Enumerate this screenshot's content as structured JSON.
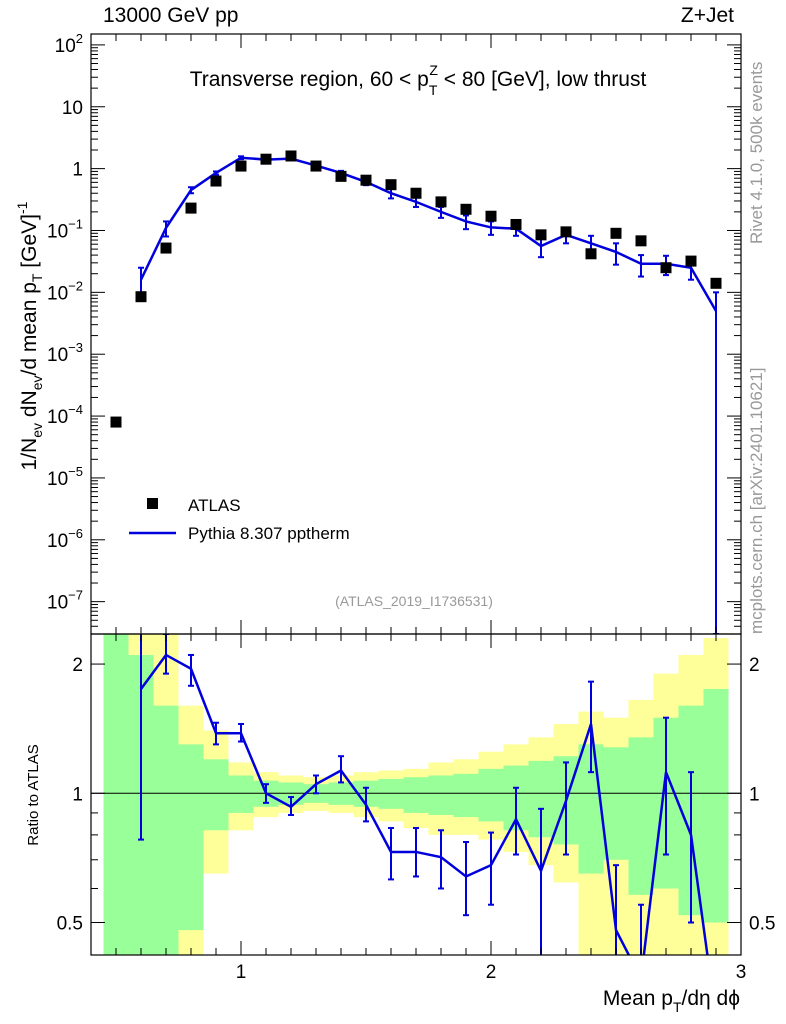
{
  "header": {
    "left_label": "13000 GeV pp",
    "right_label": "Z+Jet"
  },
  "side": {
    "rivet": "Rivet 4.1.0,  500k events",
    "mcplots": "mcplots.cern.ch [arXiv:2401.10621]"
  },
  "colors": {
    "mc": "#0000dd",
    "band_outer": "#ffff99",
    "band_inner": "#99ff99",
    "data": "#000000",
    "analysis": "#999999"
  },
  "chart_data": [
    {
      "type": "scatter",
      "role": "main",
      "title": "Transverse region, 60 < p_T^Z < 80 [GeV], low thrust",
      "ylabel": "1/N_ev dN_ev/d mean p_T [GeV]^-1",
      "yscale": "log",
      "ylim": [
        3e-08,
        150
      ],
      "xlim": [
        0.4,
        3.0
      ],
      "analysis_label": "(ATLAS_2019_I1736531)",
      "legend": {
        "position": "lower-left",
        "entries": [
          "ATLAS",
          "Pythia 8.307 pptherm"
        ]
      },
      "series": [
        {
          "name": "ATLAS",
          "style": "markers",
          "x": [
            0.5,
            0.6,
            0.7,
            0.8,
            0.9,
            1.0,
            1.1,
            1.2,
            1.3,
            1.4,
            1.5,
            1.6,
            1.7,
            1.8,
            1.9,
            2.0,
            2.1,
            2.2,
            2.3,
            2.4,
            2.5,
            2.6,
            2.7,
            2.8,
            2.9
          ],
          "y": [
            8e-05,
            0.0085,
            0.052,
            0.23,
            0.63,
            1.1,
            1.42,
            1.6,
            1.1,
            0.75,
            0.65,
            0.55,
            0.4,
            0.29,
            0.22,
            0.17,
            0.125,
            0.085,
            0.095,
            0.042,
            0.09,
            0.068,
            0.025,
            0.032,
            0.014
          ]
        },
        {
          "name": "Pythia 8.307 pptherm",
          "style": "line",
          "x": [
            0.6,
            0.7,
            0.8,
            0.9,
            1.0,
            1.1,
            1.2,
            1.3,
            1.4,
            1.5,
            1.6,
            1.7,
            1.8,
            1.9,
            2.0,
            2.1,
            2.2,
            2.3,
            2.4,
            2.5,
            2.6,
            2.7,
            2.8,
            2.9
          ],
          "y": [
            0.016,
            0.11,
            0.45,
            0.85,
            1.5,
            1.4,
            1.45,
            1.12,
            0.85,
            0.61,
            0.4,
            0.29,
            0.2,
            0.14,
            0.112,
            0.107,
            0.056,
            0.085,
            0.062,
            0.045,
            0.029,
            0.029,
            0.025,
            0.005
          ],
          "yerr_low": [
            0.009,
            0.08,
            0.4,
            0.8,
            1.42,
            1.32,
            1.38,
            1.05,
            0.78,
            0.54,
            0.33,
            0.24,
            0.16,
            0.105,
            0.085,
            0.082,
            0.037,
            0.062,
            0.042,
            0.028,
            0.018,
            0.019,
            0.016,
            3e-08
          ],
          "yerr_high": [
            0.025,
            0.14,
            0.5,
            0.9,
            1.58,
            1.48,
            1.52,
            1.19,
            0.92,
            0.68,
            0.47,
            0.34,
            0.24,
            0.175,
            0.14,
            0.132,
            0.075,
            0.108,
            0.082,
            0.062,
            0.04,
            0.039,
            0.034,
            0.01
          ]
        }
      ]
    },
    {
      "type": "line",
      "role": "ratio",
      "ylabel": "Ratio to ATLAS",
      "xlabel": "Mean p_T/dη dϕ",
      "yscale": "log",
      "ylim": [
        0.42,
        2.35
      ],
      "xlim": [
        0.4,
        3.0
      ],
      "x_ticks": [
        "1",
        "2",
        "3"
      ],
      "y_ticks": [
        "0.5",
        "1",
        "2"
      ],
      "bands": {
        "edges": [
          0.45,
          0.55,
          0.65,
          0.75,
          0.85,
          0.95,
          1.05,
          1.15,
          1.25,
          1.35,
          1.45,
          1.55,
          1.65,
          1.75,
          1.85,
          1.95,
          2.05,
          2.15,
          2.25,
          2.35,
          2.45,
          2.55,
          2.65,
          2.75,
          2.85,
          2.95
        ],
        "outer_low": [
          0.3,
          0.3,
          0.3,
          0.3,
          0.65,
          0.82,
          0.88,
          0.9,
          0.91,
          0.9,
          0.88,
          0.86,
          0.83,
          0.8,
          0.8,
          0.78,
          0.73,
          0.68,
          0.62,
          0.3,
          0.3,
          0.3,
          0.3,
          0.3,
          0.3
        ],
        "outer_high": [
          2.5,
          2.5,
          2.5,
          1.6,
          1.4,
          1.18,
          1.12,
          1.1,
          1.09,
          1.1,
          1.12,
          1.13,
          1.14,
          1.18,
          1.2,
          1.25,
          1.3,
          1.35,
          1.45,
          1.55,
          1.5,
          1.65,
          1.9,
          2.1,
          2.3
        ],
        "inner_low": [
          0.3,
          0.3,
          0.3,
          0.48,
          0.82,
          0.9,
          0.93,
          0.94,
          0.95,
          0.94,
          0.93,
          0.92,
          0.9,
          0.89,
          0.88,
          0.86,
          0.82,
          0.79,
          0.76,
          0.65,
          0.7,
          0.58,
          0.6,
          0.52,
          0.5
        ],
        "inner_high": [
          2.5,
          2.1,
          1.6,
          1.3,
          1.2,
          1.1,
          1.07,
          1.06,
          1.05,
          1.06,
          1.07,
          1.08,
          1.09,
          1.1,
          1.11,
          1.14,
          1.16,
          1.19,
          1.22,
          1.3,
          1.28,
          1.35,
          1.5,
          1.6,
          1.75
        ]
      },
      "series": [
        {
          "name": "Pythia 8.307 pptherm / ATLAS",
          "x": [
            0.6,
            0.7,
            0.8,
            0.9,
            1.0,
            1.1,
            1.2,
            1.3,
            1.4,
            1.5,
            1.6,
            1.7,
            1.8,
            1.9,
            2.0,
            2.1,
            2.2,
            2.3,
            2.4,
            2.5,
            2.6,
            2.7,
            2.8,
            2.9
          ],
          "y": [
            1.75,
            2.1,
            1.95,
            1.38,
            1.38,
            1.0,
            0.93,
            1.05,
            1.13,
            0.94,
            0.73,
            0.73,
            0.71,
            0.64,
            0.68,
            0.87,
            0.66,
            0.96,
            1.45,
            0.48,
            0.37,
            1.12,
            0.8,
            0.3
          ],
          "yerr_low": [
            0.78,
            1.9,
            1.78,
            1.3,
            1.32,
            0.95,
            0.89,
            1.0,
            1.06,
            0.86,
            0.63,
            0.64,
            0.6,
            0.52,
            0.55,
            0.72,
            0.4,
            0.72,
            1.12,
            0.3,
            0.3,
            0.72,
            0.5,
            0.3
          ],
          "yerr_high": [
            2.5,
            2.35,
            2.1,
            1.46,
            1.45,
            1.05,
            0.98,
            1.1,
            1.22,
            1.03,
            0.83,
            0.83,
            0.82,
            0.77,
            0.81,
            1.03,
            0.92,
            1.18,
            1.82,
            0.68,
            0.55,
            1.5,
            1.12,
            0.3
          ]
        }
      ]
    }
  ]
}
